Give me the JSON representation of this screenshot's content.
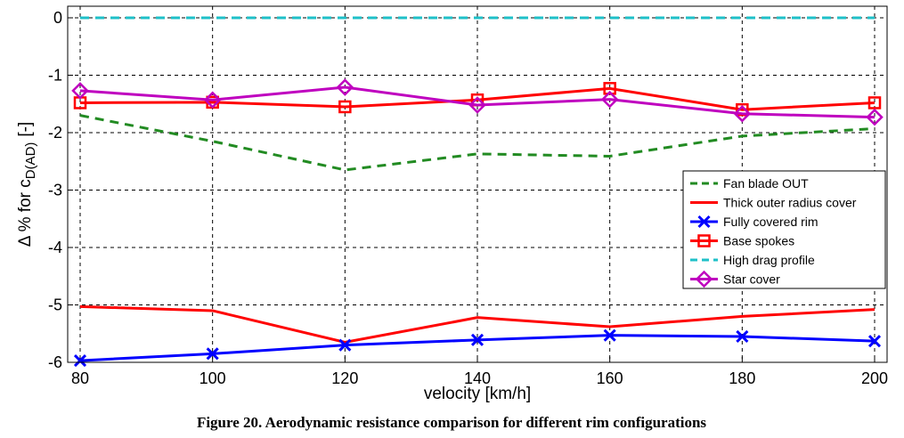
{
  "chart_data": {
    "type": "line",
    "title": "",
    "xlabel": "velocity [km/h]",
    "ylabel_main": "Δ % for c",
    "ylabel_sub": "D(AD)",
    "ylabel_unit": "[-]",
    "x": [
      80,
      100,
      120,
      140,
      160,
      180,
      200
    ],
    "xticks": [
      "80",
      "100",
      "120",
      "140",
      "160",
      "180",
      "200"
    ],
    "yticks": [
      "0",
      "-1",
      "-2",
      "-3",
      "-4",
      "-5",
      "-6"
    ],
    "xlim": [
      80,
      200
    ],
    "ylim": [
      -6,
      0.1
    ],
    "grid": true,
    "legend_position": "right",
    "series": [
      {
        "name": "Fan blade OUT",
        "color": "#228B22",
        "dash": "dashed",
        "marker": "none",
        "values": [
          -1.7,
          -2.15,
          -2.65,
          -2.37,
          -2.41,
          -2.06,
          -1.93
        ]
      },
      {
        "name": "Thick outer radius cover",
        "color": "#ff0000",
        "dash": "solid",
        "marker": "none",
        "values": [
          -5.03,
          -5.1,
          -5.65,
          -5.22,
          -5.38,
          -5.2,
          -5.08
        ]
      },
      {
        "name": "Fully covered rim",
        "color": "#0000ff",
        "dash": "solid",
        "marker": "x",
        "values": [
          -5.97,
          -5.85,
          -5.7,
          -5.61,
          -5.53,
          -5.55,
          -5.63
        ]
      },
      {
        "name": "Base spokes",
        "color": "#ff0000",
        "dash": "solid",
        "marker": "square",
        "values": [
          -1.48,
          -1.47,
          -1.55,
          -1.43,
          -1.23,
          -1.6,
          -1.48
        ]
      },
      {
        "name": "High drag profile",
        "color": "#1fc0c8",
        "dash": "dashed",
        "marker": "none",
        "values": [
          0,
          0,
          0,
          0,
          0,
          0,
          0
        ]
      },
      {
        "name": "Star cover",
        "color": "#bf00bf",
        "dash": "solid",
        "marker": "diamond",
        "values": [
          -1.27,
          -1.43,
          -1.21,
          -1.52,
          -1.42,
          -1.67,
          -1.73
        ]
      }
    ]
  },
  "caption": "Figure 20. Aerodynamic resistance comparison for different rim configurations"
}
